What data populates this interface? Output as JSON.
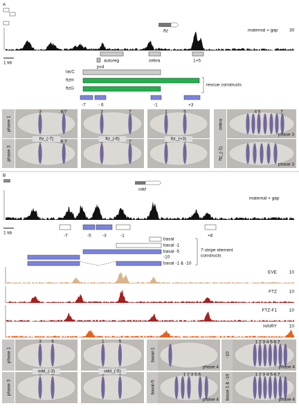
{
  "panel_a": {
    "label": "A",
    "gene": "ftz",
    "track_label": "maternal + gap",
    "track_scale": "30",
    "scale_bar": "1 kb",
    "elements": [
      "autoreg",
      "ps4",
      "zebra",
      "1+5"
    ],
    "constructs": [
      "lacC",
      "ftzH",
      "ftzG"
    ],
    "constructs_label": "rescue constructs",
    "fragments": [
      "-7",
      "- 6",
      "-1",
      "+3"
    ],
    "phases": [
      "phase 1",
      "phase 3"
    ],
    "embryos": [
      {
        "name": "ftz_(-7)",
        "phase1_stripes": [
          "3",
          "6/7"
        ],
        "phase3_stripes": [
          "3",
          "6 7"
        ]
      },
      {
        "name": "ftz_(-6)",
        "phase1_stripes": [
          "2",
          "7"
        ],
        "phase3_stripes": [
          "2",
          "7"
        ]
      },
      {
        "name": "ftz_(+3)",
        "phase1_stripes": [
          "1",
          "5"
        ],
        "phase3_stripes": [
          "1",
          "5"
        ]
      }
    ],
    "side": {
      "top_name": "zebra",
      "top_stripes": [
        "4 5",
        "7"
      ],
      "top_phase": "phase 3",
      "bottom_name": "ftz_(-1)",
      "bottom_phase": "phase 3"
    }
  },
  "panel_b": {
    "label": "B",
    "gene": "odd",
    "track_label": "maternal + gap",
    "scale_bar": "1 kb",
    "fragments": [
      "-7",
      "-5",
      "-3",
      "-1",
      "+8"
    ],
    "constructs": [
      "basal",
      "basal -1",
      "basal -5",
      "-10",
      "basal -1 & -10"
    ],
    "constructs_label": [
      "7-stripe element",
      "constructs"
    ],
    "tracks": [
      {
        "name": "EVE",
        "scale": "10"
      },
      {
        "name": "FTZ",
        "scale": "10"
      },
      {
        "name": "FTZ-F1",
        "scale": "10"
      },
      {
        "name": "HAIRY",
        "scale": "10"
      }
    ],
    "phases": [
      "phase 1",
      "phase 3"
    ],
    "embryos": [
      {
        "name": "odd_(-3)",
        "phase1_stripes": [
          "3",
          "6"
        ],
        "phase3_stripes": [
          "3",
          "6"
        ]
      },
      {
        "name": "odd_(-5)",
        "phase1_stripes": [
          "1",
          "5"
        ],
        "phase3_stripes": [
          "1",
          "5"
        ]
      }
    ],
    "side": [
      {
        "name": "basal-1",
        "stripes": "",
        "phase": "phase 4"
      },
      {
        "name": "-10",
        "stripes": "1 2 3 4 5 6 7",
        "phase": "phase 4"
      },
      {
        "name": "basal-5",
        "stripes": "1 2 3  5 6",
        "phase": "phase 4"
      },
      {
        "name": "basal-1 & -10",
        "stripes": "1 2 3 4 5 6 7",
        "phase": "phase 4"
      }
    ]
  }
}
